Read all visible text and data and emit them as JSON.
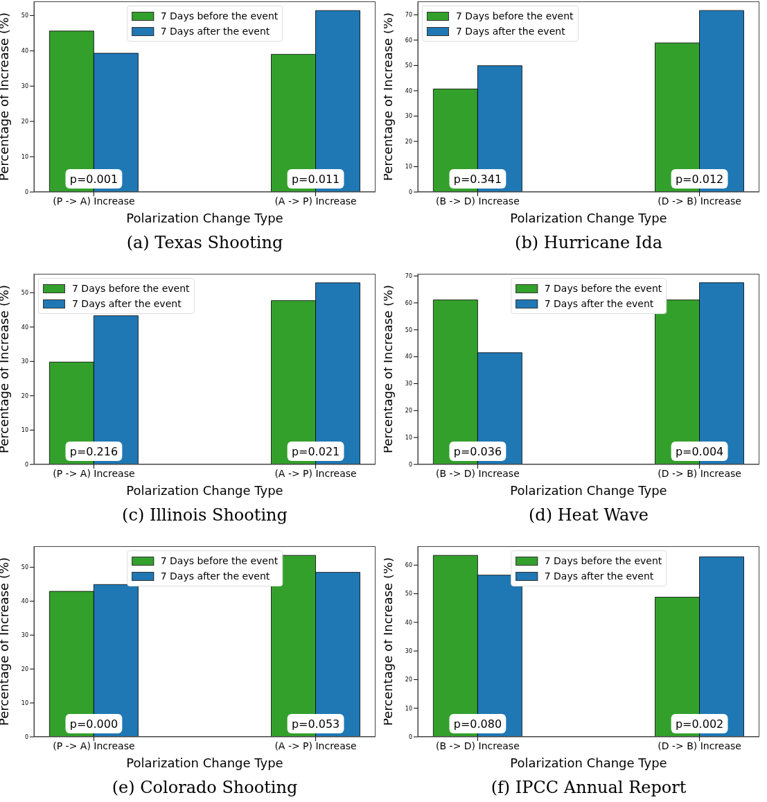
{
  "chart_data": [
    {
      "type": "bar",
      "title": "(a) Texas Shooting",
      "xlabel": "Polarization Change Type",
      "ylabel": "Percentage of Increase (%)",
      "categories": [
        "(P -> A) Increase",
        "(A -> P) Increase"
      ],
      "series": [
        {
          "name": "7 Days before the event",
          "color": "#33a02c",
          "values": [
            45.6,
            39.0
          ]
        },
        {
          "name": "7 Days after the event",
          "color": "#1f78b4",
          "values": [
            39.3,
            51.4
          ]
        }
      ],
      "ylim": [
        0,
        54
      ],
      "yticks": [
        0,
        10,
        20,
        30,
        40,
        50
      ],
      "legend": "top",
      "annotations": [
        {
          "text": "p=0.001",
          "x": "(P -> A) Increase"
        },
        {
          "text": "p=0.011",
          "x": "(A -> P) Increase"
        }
      ]
    },
    {
      "type": "bar",
      "title": "(b) Hurricane Ida",
      "xlabel": "Polarization Change Type",
      "ylabel": "Percentage of Increase (%)",
      "categories": [
        "(B -> D) Increase",
        "(D -> B) Increase"
      ],
      "series": [
        {
          "name": "7 Days before the event",
          "color": "#33a02c",
          "values": [
            40.7,
            58.9
          ]
        },
        {
          "name": "7 Days after the event",
          "color": "#1f78b4",
          "values": [
            49.9,
            71.7
          ]
        }
      ],
      "ylim": [
        0,
        75.3
      ],
      "yticks": [
        0,
        10,
        20,
        30,
        40,
        50,
        60,
        70
      ],
      "legend": "top left",
      "annotations": [
        {
          "text": "p=0.341",
          "x": "(B -> D) Increase"
        },
        {
          "text": "p=0.012",
          "x": "(D -> B) Increase"
        }
      ]
    },
    {
      "type": "bar",
      "title": "(c) Illinois Shooting",
      "xlabel": "Polarization Change Type",
      "ylabel": "Percentage of Increase (%)",
      "categories": [
        "(P -> A) Increase",
        "(A -> P) Increase"
      ],
      "series": [
        {
          "name": "7 Days before the event",
          "color": "#33a02c",
          "values": [
            29.8,
            47.7
          ]
        },
        {
          "name": "7 Days after the event",
          "color": "#1f78b4",
          "values": [
            43.3,
            52.9
          ]
        }
      ],
      "ylim": [
        0,
        55.5
      ],
      "yticks": [
        0,
        10,
        20,
        30,
        40,
        50
      ],
      "legend": "top left",
      "annotations": [
        {
          "text": "p=0.216",
          "x": "(P -> A) Increase"
        },
        {
          "text": "p=0.021",
          "x": "(A -> P) Increase"
        }
      ]
    },
    {
      "type": "bar",
      "title": "(d) Heat Wave",
      "xlabel": "Polarization Change Type",
      "ylabel": "Percentage of Increase (%)",
      "categories": [
        "(B -> D) Increase",
        "(D -> B) Increase"
      ],
      "series": [
        {
          "name": "7 Days before the event",
          "color": "#33a02c",
          "values": [
            61.1,
            61.1
          ]
        },
        {
          "name": "7 Days after the event",
          "color": "#1f78b4",
          "values": [
            41.5,
            67.5
          ]
        }
      ],
      "ylim": [
        0,
        70.8
      ],
      "yticks": [
        0,
        10,
        20,
        30,
        40,
        50,
        60,
        70
      ],
      "legend": "top",
      "annotations": [
        {
          "text": "p=0.036",
          "x": "(B -> D) Increase"
        },
        {
          "text": "p=0.004",
          "x": "(D -> B) Increase"
        }
      ]
    },
    {
      "type": "bar",
      "title": "(e) Colorado Shooting",
      "xlabel": "Polarization Change Type",
      "ylabel": "Percentage of Increase (%)",
      "categories": [
        "(P -> A) Increase",
        "(A -> P) Increase"
      ],
      "series": [
        {
          "name": "7 Days before the event",
          "color": "#33a02c",
          "values": [
            42.9,
            53.5
          ]
        },
        {
          "name": "7 Days after the event",
          "color": "#1f78b4",
          "values": [
            44.9,
            48.5
          ]
        }
      ],
      "ylim": [
        0,
        56.2
      ],
      "yticks": [
        0,
        10,
        20,
        30,
        40,
        50
      ],
      "legend": "top",
      "annotations": [
        {
          "text": "p=0.000",
          "x": "(P -> A) Increase"
        },
        {
          "text": "p=0.053",
          "x": "(A -> P) Increase"
        }
      ]
    },
    {
      "type": "bar",
      "title": "(f) IPCC Annual Report",
      "xlabel": "Polarization Change Type",
      "ylabel": "Percentage of Increase (%)",
      "categories": [
        "(B -> D) Increase",
        "(D -> B) Increase"
      ],
      "series": [
        {
          "name": "7 Days before the event",
          "color": "#33a02c",
          "values": [
            63.4,
            48.8
          ]
        },
        {
          "name": "7 Days after the event",
          "color": "#1f78b4",
          "values": [
            56.5,
            62.9
          ]
        }
      ],
      "ylim": [
        0,
        66.6
      ],
      "yticks": [
        0,
        10,
        20,
        30,
        40,
        50,
        60
      ],
      "legend": "top",
      "annotations": [
        {
          "text": "p=0.080",
          "x": "(B -> D) Increase"
        },
        {
          "text": "p=0.002",
          "x": "(D -> B) Increase"
        }
      ]
    }
  ]
}
